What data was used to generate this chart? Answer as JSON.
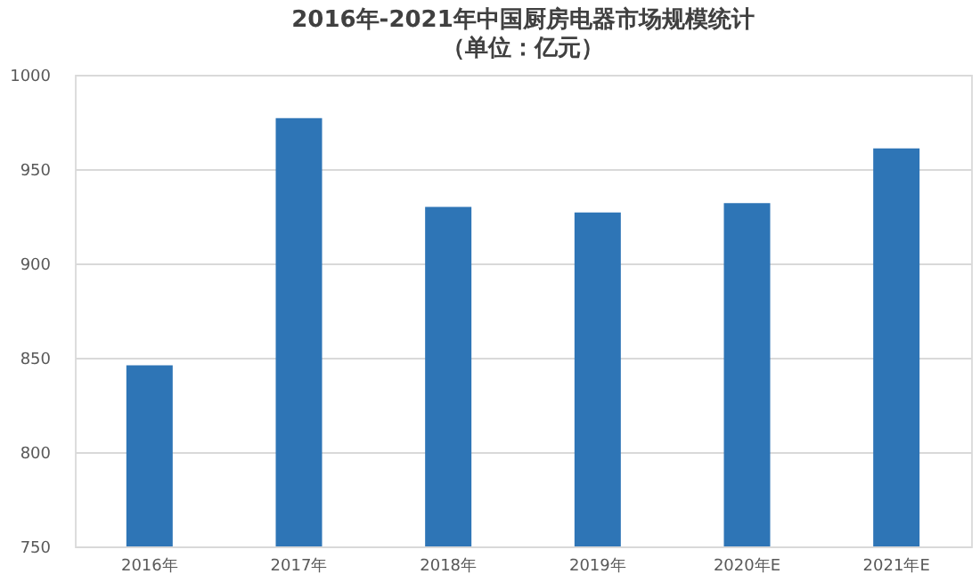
{
  "chart_data": {
    "type": "bar",
    "title": "2016年-2021年中国厨房电器市场规模统计",
    "subtitle": "（单位：亿元）",
    "categories": [
      "2016年",
      "2017年",
      "2018年",
      "2019年",
      "2020年E",
      "2021年E"
    ],
    "values": [
      846,
      977,
      930,
      927,
      932,
      961
    ],
    "color": "#2e75b6",
    "ylim": [
      750,
      1000
    ],
    "yticks": [
      750,
      800,
      850,
      900,
      950,
      1000
    ],
    "grid": "y"
  }
}
